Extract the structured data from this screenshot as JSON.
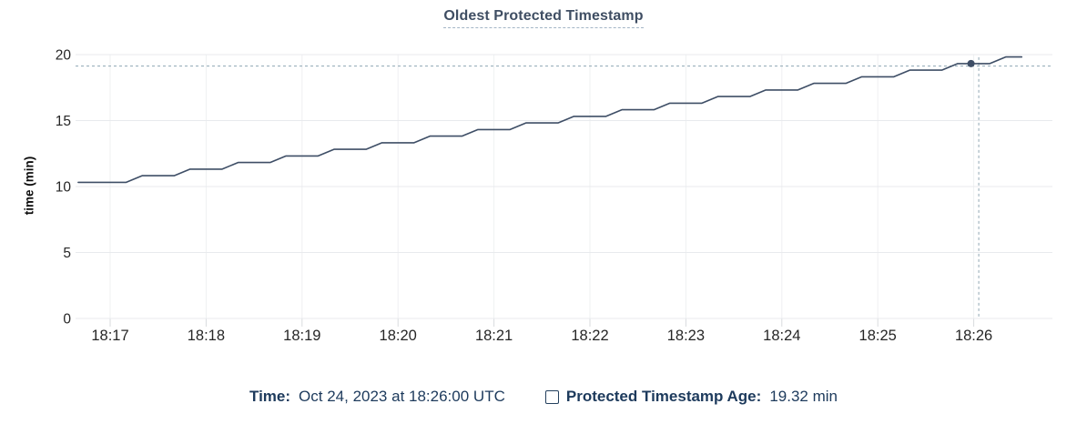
{
  "title": "Oldest Protected Timestamp",
  "y_axis": {
    "label": "time (min)",
    "ticks": [
      0,
      5,
      10,
      15,
      20
    ]
  },
  "x_axis": {
    "ticks": [
      "18:17",
      "18:18",
      "18:19",
      "18:20",
      "18:21",
      "18:22",
      "18:23",
      "18:24",
      "18:25",
      "18:26"
    ]
  },
  "legend": {
    "time_label": "Time:",
    "time_value": "Oct 24, 2023 at 18:26:00 UTC",
    "series_label": "Protected Timestamp Age:",
    "series_value": "19.32 min"
  },
  "colors": {
    "line": "#3e4e66",
    "grid_horizontal": "#e8eaed",
    "grid_vertical": "#eff0f2",
    "tick_stub": "#d9dbde",
    "tick_text": "#262626",
    "axis_title_text": "#0d0d0d",
    "title_text": "#3f4e63",
    "title_underline": "#a3b5c6",
    "legend_text": "#1d3a5c",
    "crosshair": "#8fa6b2",
    "background": "#ffffff"
  },
  "chart_data": {
    "type": "line",
    "title": "Oldest Protected Timestamp",
    "xlabel": "",
    "ylabel": "time (min)",
    "ylim": [
      0,
      20
    ],
    "x_range": [
      "18:16:40",
      "18:26:30"
    ],
    "grid": true,
    "legend_position": "bottom",
    "series": [
      {
        "name": "Protected Timestamp Age",
        "unit": "min",
        "points": [
          [
            "18:16:40",
            10.32
          ],
          [
            "18:17:10",
            10.32
          ],
          [
            "18:17:20",
            10.82
          ],
          [
            "18:17:40",
            10.82
          ],
          [
            "18:17:50",
            11.32
          ],
          [
            "18:18:10",
            11.32
          ],
          [
            "18:18:20",
            11.82
          ],
          [
            "18:18:40",
            11.82
          ],
          [
            "18:18:50",
            12.32
          ],
          [
            "18:19:10",
            12.32
          ],
          [
            "18:19:20",
            12.82
          ],
          [
            "18:19:40",
            12.82
          ],
          [
            "18:19:50",
            13.32
          ],
          [
            "18:20:10",
            13.32
          ],
          [
            "18:20:20",
            13.82
          ],
          [
            "18:20:40",
            13.82
          ],
          [
            "18:20:50",
            14.32
          ],
          [
            "18:21:10",
            14.32
          ],
          [
            "18:21:20",
            14.82
          ],
          [
            "18:21:40",
            14.82
          ],
          [
            "18:21:50",
            15.32
          ],
          [
            "18:22:10",
            15.32
          ],
          [
            "18:22:20",
            15.82
          ],
          [
            "18:22:40",
            15.82
          ],
          [
            "18:22:50",
            16.32
          ],
          [
            "18:23:10",
            16.32
          ],
          [
            "18:23:20",
            16.82
          ],
          [
            "18:23:40",
            16.82
          ],
          [
            "18:23:50",
            17.32
          ],
          [
            "18:24:10",
            17.32
          ],
          [
            "18:24:20",
            17.82
          ],
          [
            "18:24:40",
            17.82
          ],
          [
            "18:24:50",
            18.32
          ],
          [
            "18:25:10",
            18.32
          ],
          [
            "18:25:20",
            18.82
          ],
          [
            "18:25:40",
            18.82
          ],
          [
            "18:25:50",
            19.32
          ],
          [
            "18:26:10",
            19.32
          ],
          [
            "18:26:20",
            19.82
          ],
          [
            "18:26:30",
            19.82
          ]
        ]
      }
    ],
    "highlight": {
      "time": "18:26:00",
      "value": 19.32
    }
  }
}
